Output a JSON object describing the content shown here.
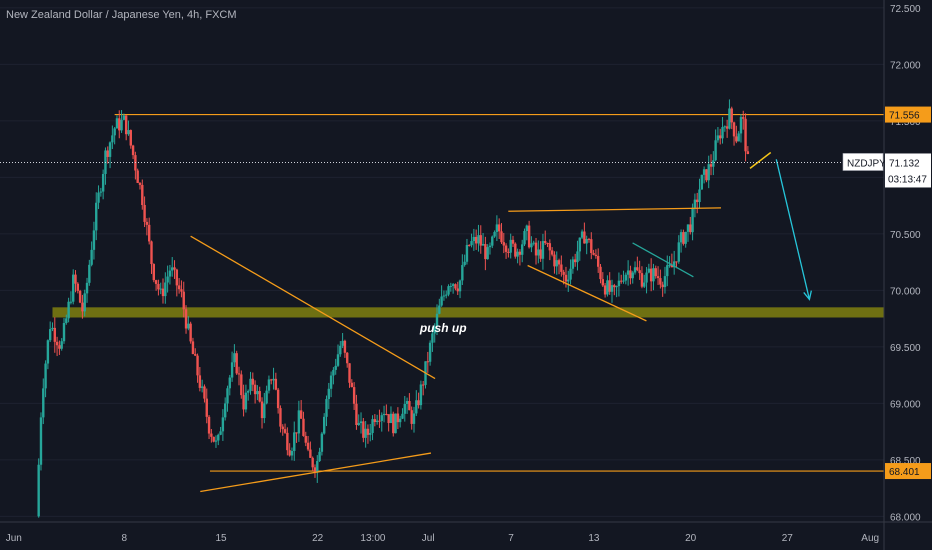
{
  "chart_data": {
    "type": "candlestick",
    "title": "New Zealand Dollar / Japanese Yen, 4h, FXCM",
    "symbol": "NZDJPY",
    "ylim": [
      67.95,
      72.57
    ],
    "y_ticks": [
      "72.500",
      "72.000",
      "71.500",
      "71.000",
      "70.500",
      "70.000",
      "69.500",
      "69.000",
      "68.500",
      "68.000"
    ],
    "x_ticks": [
      {
        "label": "Jun",
        "day": 0
      },
      {
        "label": "8",
        "day": 8
      },
      {
        "label": "15",
        "day": 15
      },
      {
        "label": "22",
        "day": 22
      },
      {
        "label": "13:00",
        "day": 26
      },
      {
        "label": "Jul",
        "day": 30
      },
      {
        "label": "7",
        "day": 36
      },
      {
        "label": "13",
        "day": 42
      },
      {
        "label": "20",
        "day": 49
      },
      {
        "label": "27",
        "day": 56
      },
      {
        "label": "Aug",
        "day": 62
      }
    ],
    "x_range_days": [
      -1,
      63
    ],
    "price_path": [
      [
        1.8,
        68.0
      ],
      [
        2.2,
        69.1
      ],
      [
        2.8,
        69.7
      ],
      [
        3.6,
        69.5
      ],
      [
        4.5,
        70.1
      ],
      [
        5.2,
        69.8
      ],
      [
        6.0,
        70.6
      ],
      [
        6.8,
        71.2
      ],
      [
        7.5,
        71.45
      ],
      [
        8.2,
        71.5
      ],
      [
        8.8,
        71.2
      ],
      [
        9.5,
        70.8
      ],
      [
        10.2,
        70.2
      ],
      [
        10.8,
        69.95
      ],
      [
        11.5,
        70.2
      ],
      [
        12.3,
        69.95
      ],
      [
        13.0,
        69.5
      ],
      [
        13.6,
        69.2
      ],
      [
        14.3,
        68.8
      ],
      [
        14.9,
        68.6
      ],
      [
        15.5,
        69.1
      ],
      [
        16.2,
        69.4
      ],
      [
        16.8,
        69.0
      ],
      [
        17.5,
        69.2
      ],
      [
        18.2,
        68.9
      ],
      [
        18.9,
        69.3
      ],
      [
        19.5,
        68.8
      ],
      [
        20.2,
        68.6
      ],
      [
        20.9,
        68.9
      ],
      [
        21.5,
        68.5
      ],
      [
        22.1,
        68.45
      ],
      [
        22.7,
        69.0
      ],
      [
        23.3,
        69.3
      ],
      [
        23.9,
        69.55
      ],
      [
        24.5,
        69.2
      ],
      [
        25.1,
        68.8
      ],
      [
        25.7,
        68.7
      ],
      [
        26.3,
        68.9
      ],
      [
        27.0,
        68.95
      ],
      [
        27.7,
        68.8
      ],
      [
        28.4,
        69.0
      ],
      [
        29.1,
        68.85
      ],
      [
        29.8,
        69.2
      ],
      [
        30.4,
        69.55
      ],
      [
        31.0,
        69.85
      ],
      [
        31.7,
        70.1
      ],
      [
        32.4,
        70.05
      ],
      [
        33.1,
        70.4
      ],
      [
        33.8,
        70.45
      ],
      [
        34.5,
        70.3
      ],
      [
        35.2,
        70.55
      ],
      [
        35.9,
        70.4
      ],
      [
        36.6,
        70.35
      ],
      [
        37.3,
        70.5
      ],
      [
        38.0,
        70.3
      ],
      [
        38.7,
        70.4
      ],
      [
        39.4,
        70.25
      ],
      [
        40.1,
        70.1
      ],
      [
        40.8,
        70.3
      ],
      [
        41.5,
        70.5
      ],
      [
        42.2,
        70.3
      ],
      [
        42.9,
        70.05
      ],
      [
        43.6,
        69.95
      ],
      [
        44.3,
        70.15
      ],
      [
        45.0,
        70.2
      ],
      [
        45.7,
        70.1
      ],
      [
        46.4,
        70.15
      ],
      [
        47.1,
        70.1
      ],
      [
        47.8,
        70.2
      ],
      [
        48.5,
        70.45
      ],
      [
        49.2,
        70.6
      ],
      [
        49.9,
        70.95
      ],
      [
        50.6,
        71.1
      ],
      [
        51.3,
        71.4
      ],
      [
        52.0,
        71.55
      ],
      [
        52.5,
        71.35
      ],
      [
        52.9,
        71.55
      ],
      [
        53.3,
        71.13
      ]
    ],
    "current_price": "71.132",
    "countdown": "03:13:47",
    "levels": [
      {
        "price": 71.556,
        "label": "71.556",
        "color": "#f59c1a",
        "from_day": 7.3
      },
      {
        "price": 68.401,
        "label": "68.401",
        "color": "#f59c1a",
        "from_day": 14.2
      }
    ],
    "support_zone": {
      "low": 69.76,
      "high": 69.85,
      "color": "#7a7a11",
      "from_day": 2.8
    },
    "trend_lines": [
      {
        "points": [
          [
            12.8,
            70.48
          ],
          [
            30.5,
            69.22
          ]
        ],
        "color": "#f59c1a"
      },
      {
        "points": [
          [
            13.5,
            68.22
          ],
          [
            30.2,
            68.56
          ]
        ],
        "color": "#f59c1a"
      },
      {
        "points": [
          [
            35.8,
            70.7
          ],
          [
            51.2,
            70.73
          ]
        ],
        "color": "#f59c1a"
      },
      {
        "points": [
          [
            37.2,
            70.22
          ],
          [
            45.8,
            69.73
          ]
        ],
        "color": "#f59c1a"
      },
      {
        "points": [
          [
            44.8,
            70.42
          ],
          [
            49.2,
            70.12
          ]
        ],
        "color": "#26a69a"
      }
    ],
    "projection": {
      "zigzag": [
        [
          53.3,
          71.08
        ],
        [
          54.8,
          71.22
        ]
      ],
      "arrow": [
        [
          55.2,
          71.16
        ],
        [
          57.6,
          69.92
        ]
      ],
      "zigzag_color": "#f5c518",
      "arrow_color": "#26c6da"
    },
    "annotation": {
      "text": "push up",
      "day": 29.4,
      "price": 69.63
    },
    "colors": {
      "up": "#26a69a",
      "down": "#ef5350",
      "background": "#131722",
      "axis_text": "#b2b5be"
    }
  }
}
